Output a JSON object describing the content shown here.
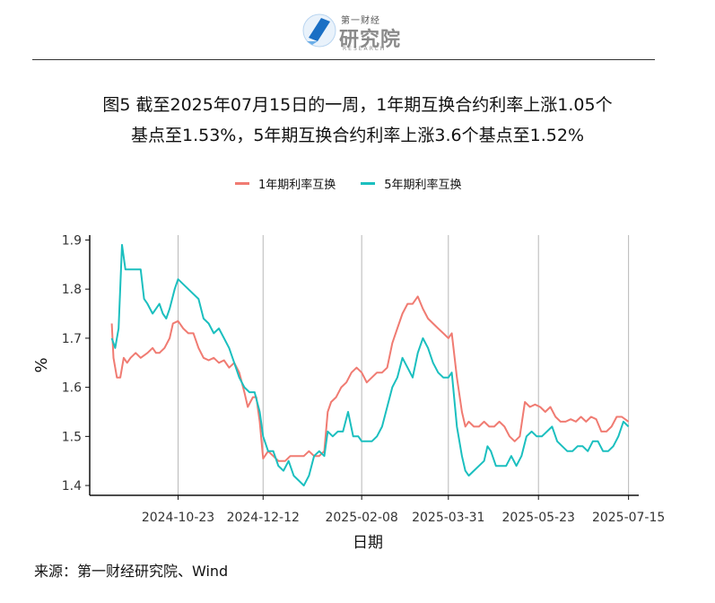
{
  "logo": {
    "small_text": "第一财经",
    "big_text": "研究院",
    "sub_text": "RESEARCH",
    "colors": {
      "primary": "#1a6fc4",
      "secondary": "#6aaee8"
    }
  },
  "figure": {
    "title_line1": "图5  截至2025年07月15日的一周，1年期互换合约利率上涨1.05个",
    "title_line2": "基点至1.53%，5年期互换合约利率上涨3.6个基点至1.52%",
    "source": "来源：第一财经研究院、Wind"
  },
  "chart_data": {
    "type": "line",
    "xlabel": "日期",
    "ylabel": "%",
    "ylim": [
      1.38,
      1.91
    ],
    "yticks": [
      1.4,
      1.5,
      1.6,
      1.7,
      1.8,
      1.9
    ],
    "xlim": [
      "2024-09-01",
      "2025-07-21"
    ],
    "xticks": [
      "2024-10-23",
      "2024-12-12",
      "2025-02-08",
      "2025-03-31",
      "2025-05-23",
      "2025-07-15"
    ],
    "grid": "vertical lines at x ticks",
    "legend_position": "top",
    "series": [
      {
        "name": "1年期利率互换",
        "color": "#f07b72",
        "points": [
          [
            "2024-09-14",
            1.73
          ],
          [
            "2024-09-15",
            1.66
          ],
          [
            "2024-09-17",
            1.62
          ],
          [
            "2024-09-19",
            1.62
          ],
          [
            "2024-09-21",
            1.66
          ],
          [
            "2024-09-23",
            1.65
          ],
          [
            "2024-09-25",
            1.66
          ],
          [
            "2024-09-28",
            1.67
          ],
          [
            "2024-10-01",
            1.66
          ],
          [
            "2024-10-05",
            1.67
          ],
          [
            "2024-10-08",
            1.68
          ],
          [
            "2024-10-10",
            1.67
          ],
          [
            "2024-10-12",
            1.67
          ],
          [
            "2024-10-15",
            1.68
          ],
          [
            "2024-10-18",
            1.7
          ],
          [
            "2024-10-20",
            1.73
          ],
          [
            "2024-10-23",
            1.735
          ],
          [
            "2024-10-26",
            1.72
          ],
          [
            "2024-10-29",
            1.71
          ],
          [
            "2024-11-01",
            1.71
          ],
          [
            "2024-11-04",
            1.68
          ],
          [
            "2024-11-07",
            1.66
          ],
          [
            "2024-11-10",
            1.655
          ],
          [
            "2024-11-13",
            1.66
          ],
          [
            "2024-11-16",
            1.65
          ],
          [
            "2024-11-19",
            1.655
          ],
          [
            "2024-11-22",
            1.64
          ],
          [
            "2024-11-25",
            1.65
          ],
          [
            "2024-11-28",
            1.63
          ],
          [
            "2024-12-01",
            1.59
          ],
          [
            "2024-12-03",
            1.56
          ],
          [
            "2024-12-06",
            1.58
          ],
          [
            "2024-12-08",
            1.58
          ],
          [
            "2024-12-10",
            1.53
          ],
          [
            "2024-12-12",
            1.455
          ],
          [
            "2024-12-15",
            1.47
          ],
          [
            "2024-12-18",
            1.46
          ],
          [
            "2024-12-21",
            1.45
          ],
          [
            "2024-12-25",
            1.45
          ],
          [
            "2024-12-28",
            1.46
          ],
          [
            "2025-01-01",
            1.46
          ],
          [
            "2025-01-05",
            1.46
          ],
          [
            "2025-01-08",
            1.47
          ],
          [
            "2025-01-11",
            1.46
          ],
          [
            "2025-01-14",
            1.46
          ],
          [
            "2025-01-17",
            1.47
          ],
          [
            "2025-01-19",
            1.55
          ],
          [
            "2025-01-21",
            1.57
          ],
          [
            "2025-01-24",
            1.58
          ],
          [
            "2025-01-27",
            1.6
          ],
          [
            "2025-01-30",
            1.61
          ],
          [
            "2025-02-02",
            1.63
          ],
          [
            "2025-02-05",
            1.64
          ],
          [
            "2025-02-08",
            1.63
          ],
          [
            "2025-02-11",
            1.61
          ],
          [
            "2025-02-14",
            1.62
          ],
          [
            "2025-02-17",
            1.63
          ],
          [
            "2025-02-20",
            1.63
          ],
          [
            "2025-02-23",
            1.64
          ],
          [
            "2025-02-26",
            1.69
          ],
          [
            "2025-03-01",
            1.72
          ],
          [
            "2025-03-04",
            1.75
          ],
          [
            "2025-03-07",
            1.77
          ],
          [
            "2025-03-10",
            1.77
          ],
          [
            "2025-03-13",
            1.785
          ],
          [
            "2025-03-16",
            1.76
          ],
          [
            "2025-03-19",
            1.74
          ],
          [
            "2025-03-22",
            1.73
          ],
          [
            "2025-03-25",
            1.72
          ],
          [
            "2025-03-28",
            1.71
          ],
          [
            "2025-03-31",
            1.7
          ],
          [
            "2025-04-02",
            1.71
          ],
          [
            "2025-04-05",
            1.62
          ],
          [
            "2025-04-08",
            1.55
          ],
          [
            "2025-04-10",
            1.52
          ],
          [
            "2025-04-12",
            1.53
          ],
          [
            "2025-04-15",
            1.52
          ],
          [
            "2025-04-18",
            1.52
          ],
          [
            "2025-04-21",
            1.53
          ],
          [
            "2025-04-24",
            1.52
          ],
          [
            "2025-04-27",
            1.52
          ],
          [
            "2025-04-30",
            1.53
          ],
          [
            "2025-05-03",
            1.52
          ],
          [
            "2025-05-06",
            1.5
          ],
          [
            "2025-05-09",
            1.49
          ],
          [
            "2025-05-12",
            1.5
          ],
          [
            "2025-05-15",
            1.57
          ],
          [
            "2025-05-18",
            1.56
          ],
          [
            "2025-05-21",
            1.565
          ],
          [
            "2025-05-24",
            1.56
          ],
          [
            "2025-05-27",
            1.55
          ],
          [
            "2025-05-30",
            1.56
          ],
          [
            "2025-06-02",
            1.54
          ],
          [
            "2025-06-05",
            1.53
          ],
          [
            "2025-06-08",
            1.53
          ],
          [
            "2025-06-11",
            1.535
          ],
          [
            "2025-06-14",
            1.53
          ],
          [
            "2025-06-17",
            1.54
          ],
          [
            "2025-06-20",
            1.53
          ],
          [
            "2025-06-23",
            1.54
          ],
          [
            "2025-06-26",
            1.535
          ],
          [
            "2025-06-29",
            1.51
          ],
          [
            "2025-07-02",
            1.51
          ],
          [
            "2025-07-05",
            1.52
          ],
          [
            "2025-07-08",
            1.54
          ],
          [
            "2025-07-11",
            1.54
          ],
          [
            "2025-07-15",
            1.53
          ]
        ]
      },
      {
        "name": "5年期利率互换",
        "color": "#1bbfbf",
        "points": [
          [
            "2024-09-14",
            1.7
          ],
          [
            "2024-09-16",
            1.68
          ],
          [
            "2024-09-18",
            1.72
          ],
          [
            "2024-09-20",
            1.89
          ],
          [
            "2024-09-22",
            1.84
          ],
          [
            "2024-09-25",
            1.84
          ],
          [
            "2024-09-28",
            1.84
          ],
          [
            "2024-10-01",
            1.84
          ],
          [
            "2024-10-03",
            1.78
          ],
          [
            "2024-10-05",
            1.77
          ],
          [
            "2024-10-08",
            1.75
          ],
          [
            "2024-10-10",
            1.76
          ],
          [
            "2024-10-12",
            1.77
          ],
          [
            "2024-10-14",
            1.75
          ],
          [
            "2024-10-16",
            1.74
          ],
          [
            "2024-10-18",
            1.76
          ],
          [
            "2024-10-21",
            1.8
          ],
          [
            "2024-10-23",
            1.82
          ],
          [
            "2024-10-26",
            1.81
          ],
          [
            "2024-10-29",
            1.8
          ],
          [
            "2024-11-01",
            1.79
          ],
          [
            "2024-11-04",
            1.78
          ],
          [
            "2024-11-07",
            1.74
          ],
          [
            "2024-11-10",
            1.73
          ],
          [
            "2024-11-13",
            1.71
          ],
          [
            "2024-11-16",
            1.72
          ],
          [
            "2024-11-19",
            1.7
          ],
          [
            "2024-11-22",
            1.68
          ],
          [
            "2024-11-25",
            1.65
          ],
          [
            "2024-11-28",
            1.62
          ],
          [
            "2024-12-01",
            1.6
          ],
          [
            "2024-12-04",
            1.59
          ],
          [
            "2024-12-07",
            1.59
          ],
          [
            "2024-12-10",
            1.55
          ],
          [
            "2024-12-12",
            1.5
          ],
          [
            "2024-12-15",
            1.47
          ],
          [
            "2024-12-18",
            1.47
          ],
          [
            "2024-12-21",
            1.44
          ],
          [
            "2024-12-24",
            1.43
          ],
          [
            "2024-12-27",
            1.45
          ],
          [
            "2024-12-30",
            1.42
          ],
          [
            "2025-01-02",
            1.41
          ],
          [
            "2025-01-05",
            1.4
          ],
          [
            "2025-01-08",
            1.42
          ],
          [
            "2025-01-11",
            1.46
          ],
          [
            "2025-01-14",
            1.47
          ],
          [
            "2025-01-17",
            1.46
          ],
          [
            "2025-01-19",
            1.51
          ],
          [
            "2025-01-22",
            1.5
          ],
          [
            "2025-01-25",
            1.51
          ],
          [
            "2025-01-28",
            1.51
          ],
          [
            "2025-01-31",
            1.55
          ],
          [
            "2025-02-03",
            1.5
          ],
          [
            "2025-02-06",
            1.5
          ],
          [
            "2025-02-08",
            1.49
          ],
          [
            "2025-02-11",
            1.49
          ],
          [
            "2025-02-14",
            1.49
          ],
          [
            "2025-02-17",
            1.5
          ],
          [
            "2025-02-20",
            1.52
          ],
          [
            "2025-02-23",
            1.56
          ],
          [
            "2025-02-26",
            1.6
          ],
          [
            "2025-03-01",
            1.62
          ],
          [
            "2025-03-04",
            1.66
          ],
          [
            "2025-03-07",
            1.64
          ],
          [
            "2025-03-10",
            1.62
          ],
          [
            "2025-03-13",
            1.67
          ],
          [
            "2025-03-16",
            1.7
          ],
          [
            "2025-03-19",
            1.68
          ],
          [
            "2025-03-22",
            1.65
          ],
          [
            "2025-03-25",
            1.63
          ],
          [
            "2025-03-28",
            1.62
          ],
          [
            "2025-03-31",
            1.62
          ],
          [
            "2025-04-02",
            1.63
          ],
          [
            "2025-04-05",
            1.52
          ],
          [
            "2025-04-08",
            1.46
          ],
          [
            "2025-04-10",
            1.43
          ],
          [
            "2025-04-12",
            1.42
          ],
          [
            "2025-04-15",
            1.43
          ],
          [
            "2025-04-18",
            1.44
          ],
          [
            "2025-04-21",
            1.45
          ],
          [
            "2025-04-23",
            1.48
          ],
          [
            "2025-04-25",
            1.47
          ],
          [
            "2025-04-28",
            1.44
          ],
          [
            "2025-05-01",
            1.44
          ],
          [
            "2025-05-04",
            1.44
          ],
          [
            "2025-05-07",
            1.46
          ],
          [
            "2025-05-10",
            1.44
          ],
          [
            "2025-05-13",
            1.46
          ],
          [
            "2025-05-16",
            1.5
          ],
          [
            "2025-05-19",
            1.51
          ],
          [
            "2025-05-22",
            1.5
          ],
          [
            "2025-05-25",
            1.5
          ],
          [
            "2025-05-28",
            1.51
          ],
          [
            "2025-05-31",
            1.52
          ],
          [
            "2025-06-03",
            1.49
          ],
          [
            "2025-06-06",
            1.48
          ],
          [
            "2025-06-09",
            1.47
          ],
          [
            "2025-06-12",
            1.47
          ],
          [
            "2025-06-15",
            1.48
          ],
          [
            "2025-06-18",
            1.48
          ],
          [
            "2025-06-21",
            1.47
          ],
          [
            "2025-06-24",
            1.49
          ],
          [
            "2025-06-27",
            1.49
          ],
          [
            "2025-06-30",
            1.47
          ],
          [
            "2025-07-03",
            1.47
          ],
          [
            "2025-07-06",
            1.48
          ],
          [
            "2025-07-09",
            1.5
          ],
          [
            "2025-07-12",
            1.53
          ],
          [
            "2025-07-15",
            1.52
          ]
        ]
      }
    ]
  }
}
